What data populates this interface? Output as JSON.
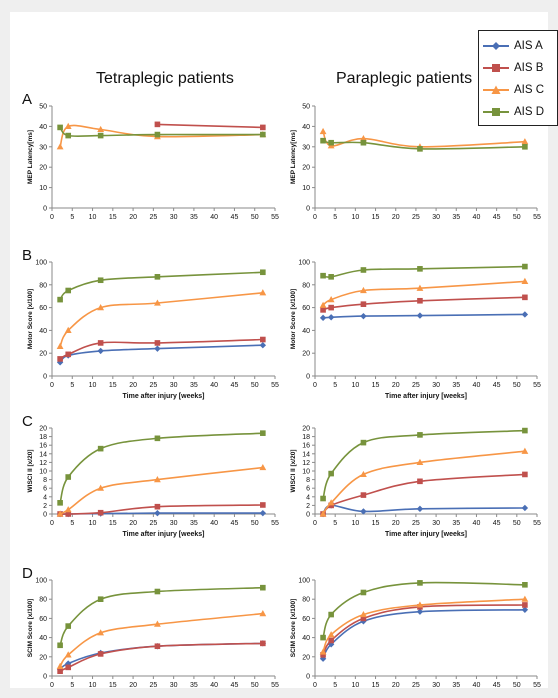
{
  "figure": {
    "column_titles": [
      "Tetraplegic patients",
      "Paraplegic patients"
    ],
    "legend": {
      "placement": "top-right",
      "items": [
        {
          "label": "AIS A",
          "color": "#4a6fb5",
          "marker": "diamond"
        },
        {
          "label": "AIS B",
          "color": "#c0504d",
          "marker": "square"
        },
        {
          "label": "AIS C",
          "color": "#f79646",
          "marker": "triangle"
        },
        {
          "label": "AIS D",
          "color": "#77933c",
          "marker": "square"
        }
      ]
    }
  },
  "chart_data": [
    {
      "type": "line",
      "panel_label": "A",
      "group": "Tetraplegic patients",
      "xlabel": "",
      "ylabel": "MEP Latency[ms]",
      "xlim": [
        0,
        55
      ],
      "ylim": [
        0,
        50
      ],
      "xticks": [
        0,
        5,
        10,
        15,
        20,
        25,
        30,
        35,
        40,
        45,
        50,
        55
      ],
      "yticks": [
        0,
        10,
        20,
        30,
        40,
        50
      ],
      "series": [
        {
          "name": "AIS B",
          "x": [
            26,
            52
          ],
          "y": [
            41,
            39.5
          ]
        },
        {
          "name": "AIS C",
          "x": [
            2,
            4,
            12,
            26,
            52
          ],
          "y": [
            30,
            40,
            38.5,
            35,
            36
          ]
        },
        {
          "name": "AIS D",
          "x": [
            2,
            4,
            12,
            26,
            52
          ],
          "y": [
            39.5,
            35.5,
            35.5,
            36,
            36
          ]
        }
      ]
    },
    {
      "type": "line",
      "panel_label": "",
      "group": "Paraplegic patients",
      "xlabel": "",
      "ylabel": "MEP Latency[ms]",
      "xlim": [
        0,
        55
      ],
      "ylim": [
        0,
        50
      ],
      "xticks": [
        0,
        5,
        10,
        15,
        20,
        25,
        30,
        35,
        40,
        45,
        50,
        55
      ],
      "yticks": [
        0,
        10,
        20,
        30,
        40,
        50
      ],
      "series": [
        {
          "name": "AIS C",
          "x": [
            2,
            4,
            12,
            26,
            52
          ],
          "y": [
            37.5,
            30.5,
            34,
            30,
            32.5
          ]
        },
        {
          "name": "AIS D",
          "x": [
            2,
            4,
            12,
            26,
            52
          ],
          "y": [
            33,
            32,
            32,
            29,
            30
          ]
        }
      ]
    },
    {
      "type": "line",
      "panel_label": "B",
      "group": "Tetraplegic patients",
      "xlabel": "Time after injury [weeks]",
      "ylabel": "Motor Score [x/100]",
      "xlim": [
        0,
        55
      ],
      "ylim": [
        0,
        100
      ],
      "xticks": [
        0,
        5,
        10,
        15,
        20,
        25,
        30,
        35,
        40,
        45,
        50,
        55
      ],
      "yticks": [
        0,
        20,
        40,
        60,
        80,
        100
      ],
      "series": [
        {
          "name": "AIS A",
          "x": [
            2,
            4,
            12,
            26,
            52
          ],
          "y": [
            12,
            18,
            22,
            24,
            27
          ]
        },
        {
          "name": "AIS B",
          "x": [
            2,
            4,
            12,
            26,
            52
          ],
          "y": [
            15,
            19,
            29,
            29,
            32
          ]
        },
        {
          "name": "AIS C",
          "x": [
            2,
            4,
            12,
            26,
            52
          ],
          "y": [
            26,
            40,
            60,
            64,
            73
          ]
        },
        {
          "name": "AIS D",
          "x": [
            2,
            4,
            12,
            26,
            52
          ],
          "y": [
            67,
            75,
            84,
            87,
            91
          ]
        }
      ]
    },
    {
      "type": "line",
      "panel_label": "",
      "group": "Paraplegic patients",
      "xlabel": "Time after injury [weeks]",
      "ylabel": "Motor Score [x/100]",
      "xlim": [
        0,
        55
      ],
      "ylim": [
        0,
        100
      ],
      "xticks": [
        0,
        5,
        10,
        15,
        20,
        25,
        30,
        35,
        40,
        45,
        50,
        55
      ],
      "yticks": [
        0,
        20,
        40,
        60,
        80,
        100
      ],
      "series": [
        {
          "name": "AIS A",
          "x": [
            2,
            4,
            12,
            26,
            52
          ],
          "y": [
            51,
            51.5,
            52.5,
            53,
            54
          ]
        },
        {
          "name": "AIS B",
          "x": [
            2,
            4,
            12,
            26,
            52
          ],
          "y": [
            58,
            60,
            63,
            66,
            69
          ]
        },
        {
          "name": "AIS C",
          "x": [
            2,
            4,
            12,
            26,
            52
          ],
          "y": [
            62,
            67,
            75,
            77,
            83
          ]
        },
        {
          "name": "AIS D",
          "x": [
            2,
            4,
            12,
            26,
            52
          ],
          "y": [
            88,
            87,
            93,
            94,
            96
          ]
        }
      ]
    },
    {
      "type": "line",
      "panel_label": "C",
      "group": "Tetraplegic patients",
      "xlabel": "Time after injury [weeks]",
      "ylabel": "WISCI II [x/20]",
      "xlim": [
        0,
        55
      ],
      "ylim": [
        0,
        20
      ],
      "xticks": [
        0,
        5,
        10,
        15,
        20,
        25,
        30,
        35,
        40,
        45,
        50,
        55
      ],
      "yticks": [
        0,
        2,
        4,
        6,
        8,
        10,
        12,
        14,
        16,
        18,
        20
      ],
      "series": [
        {
          "name": "AIS A",
          "x": [
            2,
            4,
            12,
            26,
            52
          ],
          "y": [
            0,
            0,
            0.1,
            0.2,
            0.2
          ]
        },
        {
          "name": "AIS B",
          "x": [
            2,
            4,
            12,
            26,
            52
          ],
          "y": [
            0,
            0,
            0.3,
            1.7,
            2.1
          ]
        },
        {
          "name": "AIS C",
          "x": [
            2,
            4,
            12,
            26,
            52
          ],
          "y": [
            0,
            1,
            6,
            8,
            10.8
          ]
        },
        {
          "name": "AIS D",
          "x": [
            2,
            4,
            12,
            26,
            52
          ],
          "y": [
            2.6,
            8.6,
            15.2,
            17.6,
            18.8
          ]
        }
      ]
    },
    {
      "type": "line",
      "panel_label": "",
      "group": "Paraplegic patients",
      "xlabel": "Time after injury [weeks]",
      "ylabel": "WISCI II [x/20]",
      "xlim": [
        0,
        55
      ],
      "ylim": [
        0,
        20
      ],
      "xticks": [
        0,
        5,
        10,
        15,
        20,
        25,
        30,
        35,
        40,
        45,
        50,
        55
      ],
      "yticks": [
        0,
        2,
        4,
        6,
        8,
        10,
        12,
        14,
        16,
        18,
        20
      ],
      "series": [
        {
          "name": "AIS A",
          "x": [
            2,
            4,
            12,
            26,
            52
          ],
          "y": [
            0,
            2,
            0.6,
            1.2,
            1.4
          ]
        },
        {
          "name": "AIS B",
          "x": [
            2,
            4,
            12,
            26,
            52
          ],
          "y": [
            0,
            2,
            4.4,
            7.6,
            9.2
          ]
        },
        {
          "name": "AIS C",
          "x": [
            2,
            4,
            12,
            26,
            52
          ],
          "y": [
            0,
            2.6,
            9.2,
            12,
            14.6
          ]
        },
        {
          "name": "AIS D",
          "x": [
            2,
            4,
            12,
            26,
            52
          ],
          "y": [
            3.6,
            9.4,
            16.6,
            18.4,
            19.4
          ]
        }
      ]
    },
    {
      "type": "line",
      "panel_label": "D",
      "group": "Tetraplegic patients",
      "xlabel": "Time after injury [weeks]",
      "ylabel": "SCIM Score [x/100]",
      "xlim": [
        0,
        55
      ],
      "ylim": [
        0,
        100
      ],
      "xticks": [
        0,
        5,
        10,
        15,
        20,
        25,
        30,
        35,
        40,
        45,
        50,
        55
      ],
      "yticks": [
        0,
        20,
        40,
        60,
        80,
        100
      ],
      "series": [
        {
          "name": "AIS A",
          "x": [
            2,
            4,
            12,
            26,
            52
          ],
          "y": [
            7,
            13,
            24,
            31,
            34
          ]
        },
        {
          "name": "AIS B",
          "x": [
            2,
            4,
            12,
            26,
            52
          ],
          "y": [
            5,
            9,
            23,
            31,
            34
          ]
        },
        {
          "name": "AIS C",
          "x": [
            2,
            4,
            12,
            26,
            52
          ],
          "y": [
            10,
            22,
            45,
            54,
            65
          ]
        },
        {
          "name": "AIS D",
          "x": [
            2,
            4,
            12,
            26,
            52
          ],
          "y": [
            32,
            52,
            80,
            88,
            92
          ]
        }
      ]
    },
    {
      "type": "line",
      "panel_label": "",
      "group": "Paraplegic patients",
      "xlabel": "Time after injury [weeks]",
      "ylabel": "SCIM Score [x/100]",
      "xlim": [
        0,
        55
      ],
      "ylim": [
        0,
        100
      ],
      "xticks": [
        0,
        5,
        10,
        15,
        20,
        25,
        30,
        35,
        40,
        45,
        50,
        55
      ],
      "yticks": [
        0,
        20,
        40,
        60,
        80,
        100
      ],
      "series": [
        {
          "name": "AIS A",
          "x": [
            2,
            4,
            12,
            26,
            52
          ],
          "y": [
            18,
            33,
            57,
            67,
            69
          ]
        },
        {
          "name": "AIS B",
          "x": [
            2,
            4,
            12,
            26,
            52
          ],
          "y": [
            22,
            37,
            60,
            72,
            74
          ]
        },
        {
          "name": "AIS C",
          "x": [
            2,
            4,
            12,
            26,
            52
          ],
          "y": [
            25,
            43,
            64,
            74,
            80
          ]
        },
        {
          "name": "AIS D",
          "x": [
            2,
            4,
            12,
            26,
            52
          ],
          "y": [
            40,
            64,
            87,
            97,
            95
          ]
        }
      ]
    }
  ]
}
